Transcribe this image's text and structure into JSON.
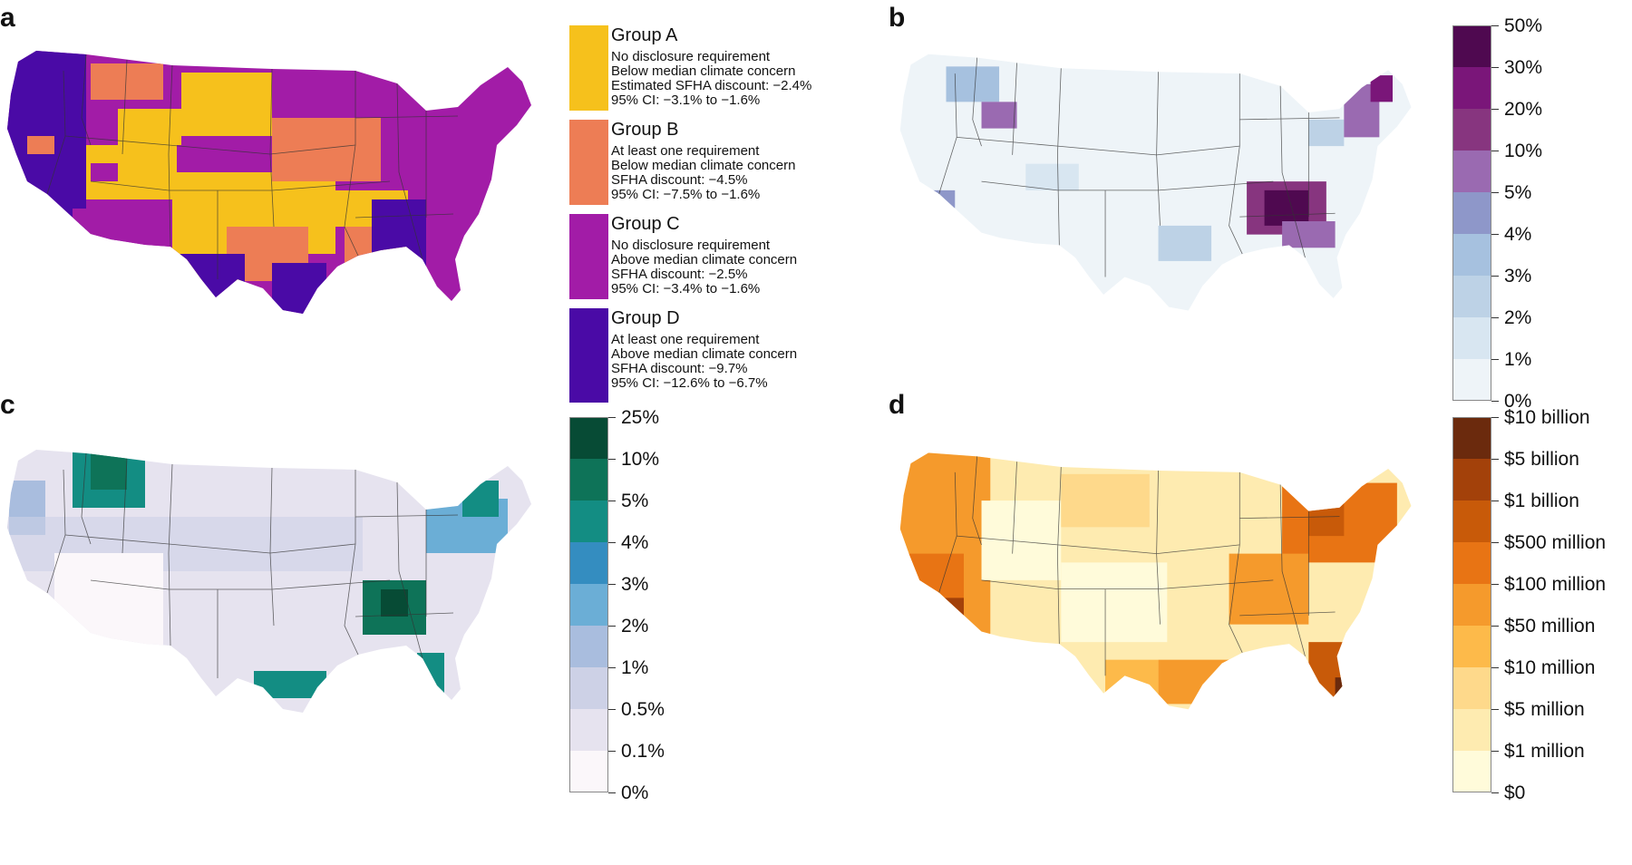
{
  "panels": {
    "a": {
      "letter": "a",
      "groups": [
        {
          "title": "Group A",
          "color": "#F6C11C",
          "lines": [
            "No disclosure requirement",
            "Below median climate concern",
            "Estimated SFHA discount: −2.4%",
            "95% CI: −3.1% to −1.6%"
          ]
        },
        {
          "title": "Group B",
          "color": "#ED7D55",
          "lines": [
            "At least one requirement",
            "Below median climate concern",
            "SFHA discount: −4.5%",
            "95% CI: −7.5% to −1.6%"
          ]
        },
        {
          "title": "Group C",
          "color": "#A21CA7",
          "lines": [
            "No disclosure requirement",
            "Above median climate concern",
            "SFHA discount: −2.5%",
            "95% CI: −3.4% to −1.6%"
          ]
        },
        {
          "title": "Group D",
          "color": "#4A0AA6",
          "lines": [
            "At least one requirement",
            "Above median climate concern",
            "SFHA discount: −9.7%",
            "95% CI: −12.6% to −6.7%"
          ]
        }
      ]
    },
    "b": {
      "letter": "b",
      "labels": [
        "50%",
        "30%",
        "20%",
        "10%",
        "5%",
        "4%",
        "3%",
        "2%",
        "1%",
        "0%"
      ],
      "colors": [
        "#4F0950",
        "#7A1679",
        "#87357F",
        "#9A6AB1",
        "#8E97C9",
        "#A6C1DF",
        "#BDD2E6",
        "#D8E6F1",
        "#EEF4F8"
      ]
    },
    "c": {
      "letter": "c",
      "labels": [
        "25%",
        "10%",
        "5%",
        "4%",
        "3%",
        "2%",
        "1%",
        "0.5%",
        "0.1%",
        "0%"
      ],
      "colors": [
        "#074B35",
        "#0E7358",
        "#138D83",
        "#348DC0",
        "#6BAED6",
        "#A9BDDE",
        "#CDD1E6",
        "#E6E3EF",
        "#FBF7FA"
      ]
    },
    "d": {
      "letter": "d",
      "labels": [
        "$10 billion",
        "$5 billion",
        "$1 billion",
        "$500 million",
        "$100 million",
        "$50 million",
        "$10 million",
        "$5 million",
        "$1 million",
        "$0"
      ],
      "colors": [
        "#6B2A0D",
        "#A3410A",
        "#C85A09",
        "#E87414",
        "#F59A2C",
        "#FDBA4A",
        "#FED98B",
        "#FEEBB0",
        "#FFFBDA"
      ]
    }
  },
  "chart_data": [
    {
      "type": "choropleth",
      "title": "a",
      "legend": [
        "Group A",
        "Group B",
        "Group C",
        "Group D"
      ],
      "estimates": [
        {
          "group": "Group A",
          "discount_pct": -2.4,
          "ci": [
            -3.1,
            -1.6
          ]
        },
        {
          "group": "Group B",
          "discount_pct": -4.5,
          "ci": [
            -7.5,
            -1.6
          ]
        },
        {
          "group": "Group C",
          "discount_pct": -2.5,
          "ci": [
            -3.4,
            -1.6
          ]
        },
        {
          "group": "Group D",
          "discount_pct": -9.7,
          "ci": [
            -12.6,
            -6.7
          ]
        }
      ]
    },
    {
      "type": "choropleth",
      "title": "b",
      "legend_breaks": [
        "0%",
        "1%",
        "2%",
        "3%",
        "4%",
        "5%",
        "10%",
        "20%",
        "30%",
        "50%"
      ]
    },
    {
      "type": "choropleth",
      "title": "c",
      "legend_breaks": [
        "0%",
        "0.1%",
        "0.5%",
        "1%",
        "2%",
        "3%",
        "4%",
        "5%",
        "10%",
        "25%"
      ]
    },
    {
      "type": "choropleth",
      "title": "d",
      "legend_breaks": [
        "$0",
        "$1 million",
        "$5 million",
        "$10 million",
        "$50 million",
        "$100 million",
        "$500 million",
        "$1 billion",
        "$5 billion",
        "$10 billion"
      ]
    }
  ]
}
